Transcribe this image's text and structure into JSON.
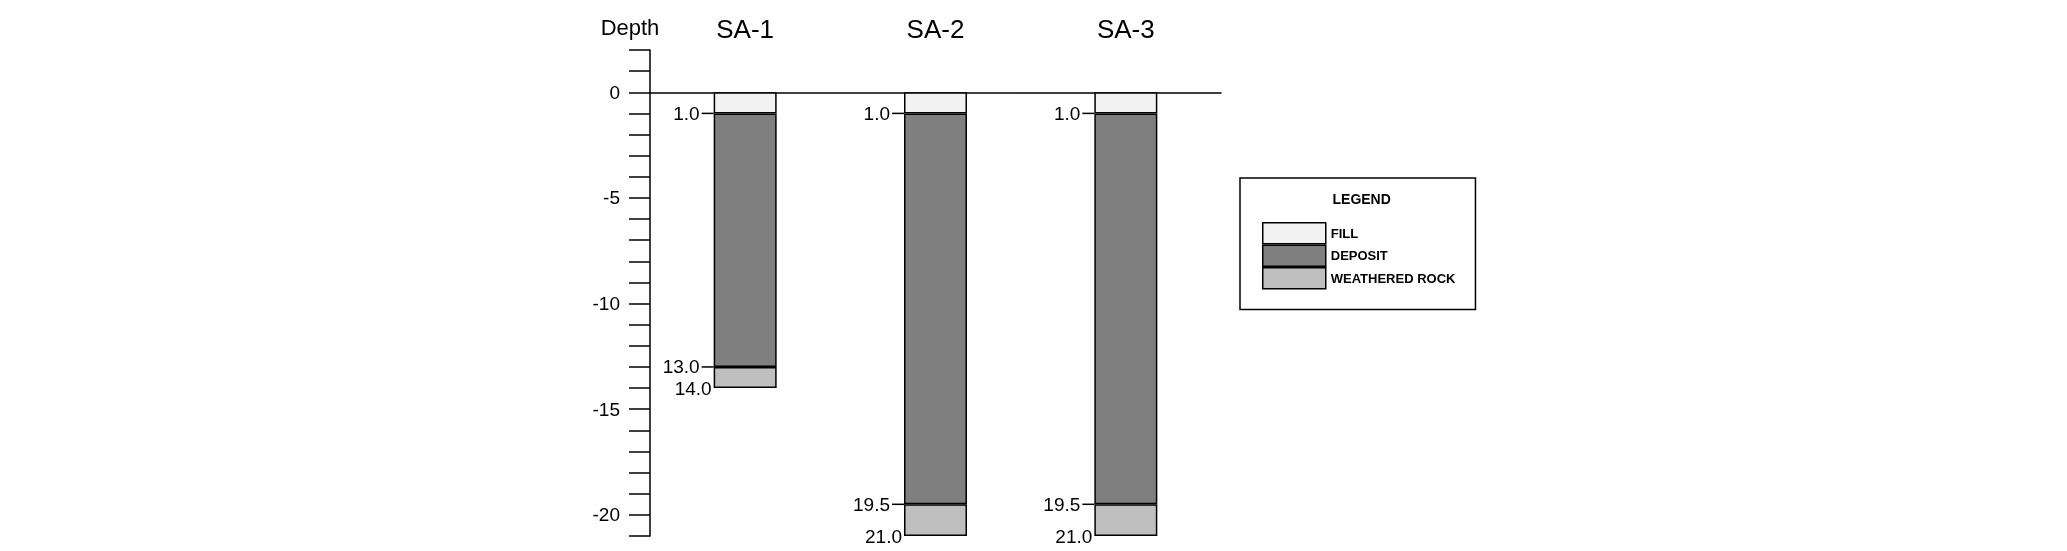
{
  "chart_data": {
    "type": "bar",
    "stacked": true,
    "ylabel": "Depth",
    "legend_title": "LEGEND",
    "legend": "right",
    "categories": [
      "SA-1",
      "SA-2",
      "SA-3"
    ],
    "series": [
      {
        "name": "FILL",
        "color": "#f2f2f2",
        "values": [
          -1,
          -1,
          -1
        ]
      },
      {
        "name": "DEPOSIT",
        "color": "#7f7f7f",
        "values": [
          -12,
          -18.5,
          -18.5
        ]
      },
      {
        "name": "WEATHERED ROCK",
        "color": "#bfbfbf",
        "values": [
          -1,
          -1.5,
          -1.5
        ]
      }
    ],
    "ylim": [
      -21,
      2
    ],
    "yticks": [
      0,
      -5,
      -10,
      -15,
      -20
    ],
    "annotations": [
      {
        "text": "1.0",
        "x": "SA-1",
        "y": -1
      },
      {
        "text": "13.0",
        "x": "SA-1",
        "y": -13
      },
      {
        "text": "14.0",
        "x": "SA-1",
        "y": -14
      },
      {
        "text": "1.0",
        "x": "SA-2",
        "y": -1
      },
      {
        "text": "19.5",
        "x": "SA-2",
        "y": -19.5
      },
      {
        "text": "21.0",
        "x": "SA-2",
        "y": -21
      },
      {
        "text": "1.0",
        "x": "SA-3",
        "y": -1
      },
      {
        "text": "19.5",
        "x": "SA-3",
        "y": -19.5
      },
      {
        "text": "21.0",
        "x": "SA-3",
        "y": -21
      }
    ]
  }
}
